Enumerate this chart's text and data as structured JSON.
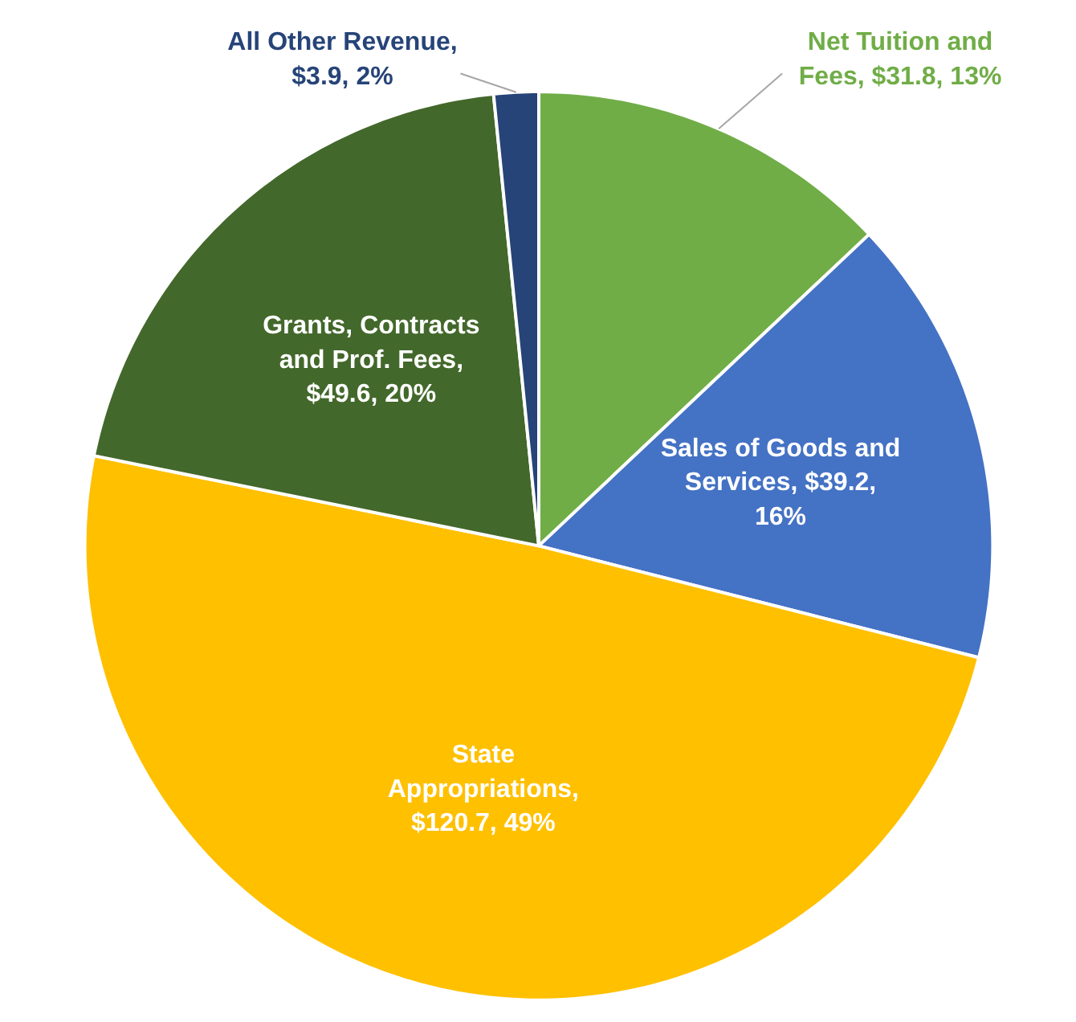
{
  "chart_data": {
    "type": "pie",
    "categories": [
      "Net Tuition and Fees, $31.8, 13%",
      "Sales of Goods and Services, $39.2, 16%",
      "State Appropriations, $120.7, 49%",
      "Grants, Contracts and Prof. Fees, $49.6, 20%",
      "All Other Revenue, $3.9, 2%"
    ],
    "values": [
      31.8,
      39.2,
      120.7,
      49.6,
      3.9
    ],
    "colors": [
      "#70ad47",
      "#4472c4",
      "#ffc000",
      "#43682b",
      "#264478"
    ]
  }
}
